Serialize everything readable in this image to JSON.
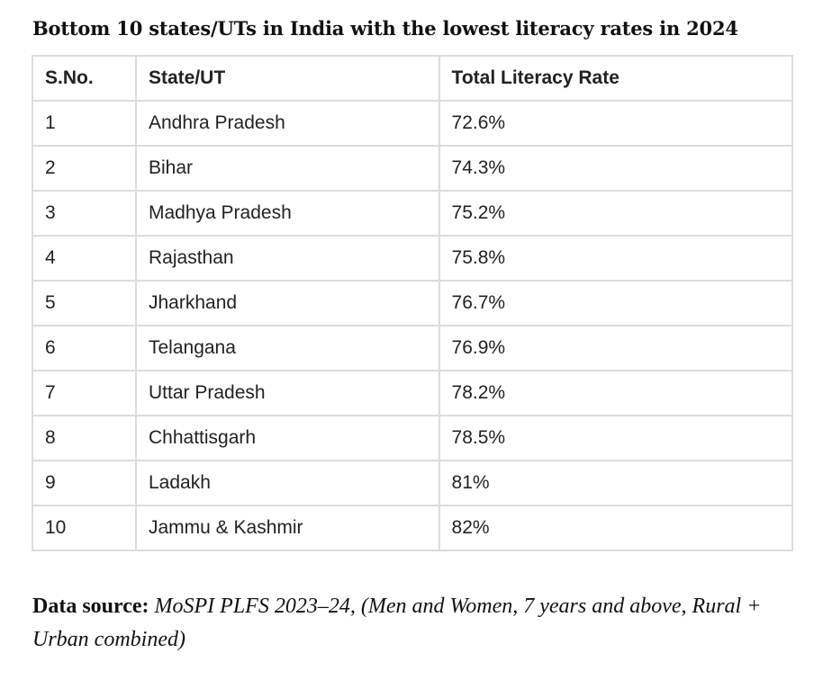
{
  "title": "Bottom 10 states/UTs in India with the lowest literacy rates in 2024",
  "table": {
    "headers": [
      "S.No.",
      "State/UT",
      "Total Literacy Rate"
    ],
    "rows": [
      [
        "1",
        "Andhra Pradesh",
        "72.6%"
      ],
      [
        "2",
        "Bihar",
        "74.3%"
      ],
      [
        "3",
        "Madhya Pradesh",
        "75.2%"
      ],
      [
        "4",
        "Rajasthan",
        "75.8%"
      ],
      [
        "5",
        "Jharkhand",
        "76.7%"
      ],
      [
        "6",
        "Telangana",
        "76.9%"
      ],
      [
        "7",
        "Uttar Pradesh",
        "78.2%"
      ],
      [
        "8",
        "Chhattisgarh",
        "78.5%"
      ],
      [
        "9",
        "Ladakh",
        "81%"
      ],
      [
        "10",
        "Jammu & Kashmir",
        "82%"
      ]
    ]
  },
  "source": {
    "label": "Data source:",
    "text": "MoSPI PLFS 2023–24, (Men and Women, 7 years and above, Rural + Urban combined)"
  }
}
